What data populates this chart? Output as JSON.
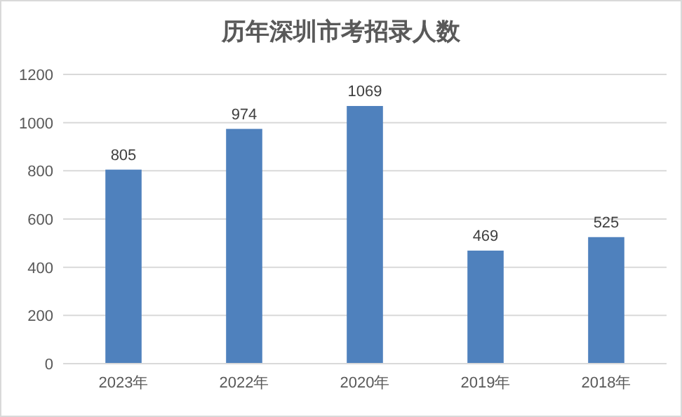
{
  "chart_data": {
    "type": "bar",
    "title": "历年深圳市考招录人数",
    "categories": [
      "2023年",
      "2022年",
      "2020年",
      "2019年",
      "2018年"
    ],
    "values": [
      805,
      974,
      1069,
      469,
      525
    ],
    "color": "#4f81bd",
    "ylim": [
      0,
      1200
    ],
    "yticks": [
      0,
      200,
      400,
      600,
      800,
      1000,
      1200
    ],
    "grid": "y",
    "data_labels": true
  }
}
